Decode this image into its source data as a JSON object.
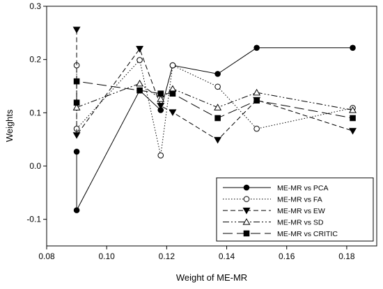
{
  "chart_data": {
    "type": "line",
    "title": "",
    "xlabel": "Weight of ME-MR",
    "ylabel": "Weights",
    "xlim": [
      0.08,
      0.19
    ],
    "ylim": [
      -0.15,
      0.3
    ],
    "xticks": [
      "0.08",
      "0.10",
      "0.12",
      "0.14",
      "0.16",
      "0.18"
    ],
    "yticks": [
      "-0.1",
      "0.0",
      "0.1",
      "0.2",
      "0.3"
    ],
    "grid": false,
    "legend_position": "bottom-right",
    "series": [
      {
        "name": "ME-MR vs PCA",
        "marker": "filled-circle",
        "line_style": "solid",
        "points": [
          [
            0.09,
            0.027
          ],
          [
            0.09,
            -0.083
          ],
          [
            0.111,
            0.142
          ],
          [
            0.118,
            0.105
          ],
          [
            0.122,
            0.189
          ],
          [
            0.137,
            0.173
          ],
          [
            0.15,
            0.222
          ],
          [
            0.182,
            0.222
          ]
        ]
      },
      {
        "name": "ME-MR vs FA",
        "marker": "open-circle",
        "line_style": "dotted",
        "points": [
          [
            0.09,
            0.189
          ],
          [
            0.09,
            0.07
          ],
          [
            0.111,
            0.199
          ],
          [
            0.118,
            0.02
          ],
          [
            0.122,
            0.189
          ],
          [
            0.137,
            0.149
          ],
          [
            0.15,
            0.07
          ],
          [
            0.182,
            0.109
          ]
        ]
      },
      {
        "name": "ME-MR vs EW",
        "marker": "filled-triangle-down",
        "line_style": "dashed",
        "points": [
          [
            0.09,
            0.256
          ],
          [
            0.09,
            0.058
          ],
          [
            0.111,
            0.22
          ],
          [
            0.118,
            0.113
          ],
          [
            0.122,
            0.101
          ],
          [
            0.137,
            0.049
          ],
          [
            0.15,
            0.124
          ],
          [
            0.182,
            0.066
          ]
        ]
      },
      {
        "name": "ME-MR vs SD",
        "marker": "open-triangle-up",
        "line_style": "dash-dot-dot",
        "points": [
          [
            0.09,
            0.11
          ],
          [
            0.111,
            0.155
          ],
          [
            0.118,
            0.126
          ],
          [
            0.122,
            0.145
          ],
          [
            0.137,
            0.11
          ],
          [
            0.15,
            0.138
          ],
          [
            0.182,
            0.105
          ]
        ]
      },
      {
        "name": "ME-MR vs CRITIC",
        "marker": "filled-square",
        "line_style": "long-dash",
        "points": [
          [
            0.09,
            0.119
          ],
          [
            0.09,
            0.159
          ],
          [
            0.111,
            0.142
          ],
          [
            0.118,
            0.136
          ],
          [
            0.122,
            0.136
          ],
          [
            0.137,
            0.09
          ],
          [
            0.15,
            0.123
          ],
          [
            0.182,
            0.09
          ]
        ]
      }
    ]
  }
}
